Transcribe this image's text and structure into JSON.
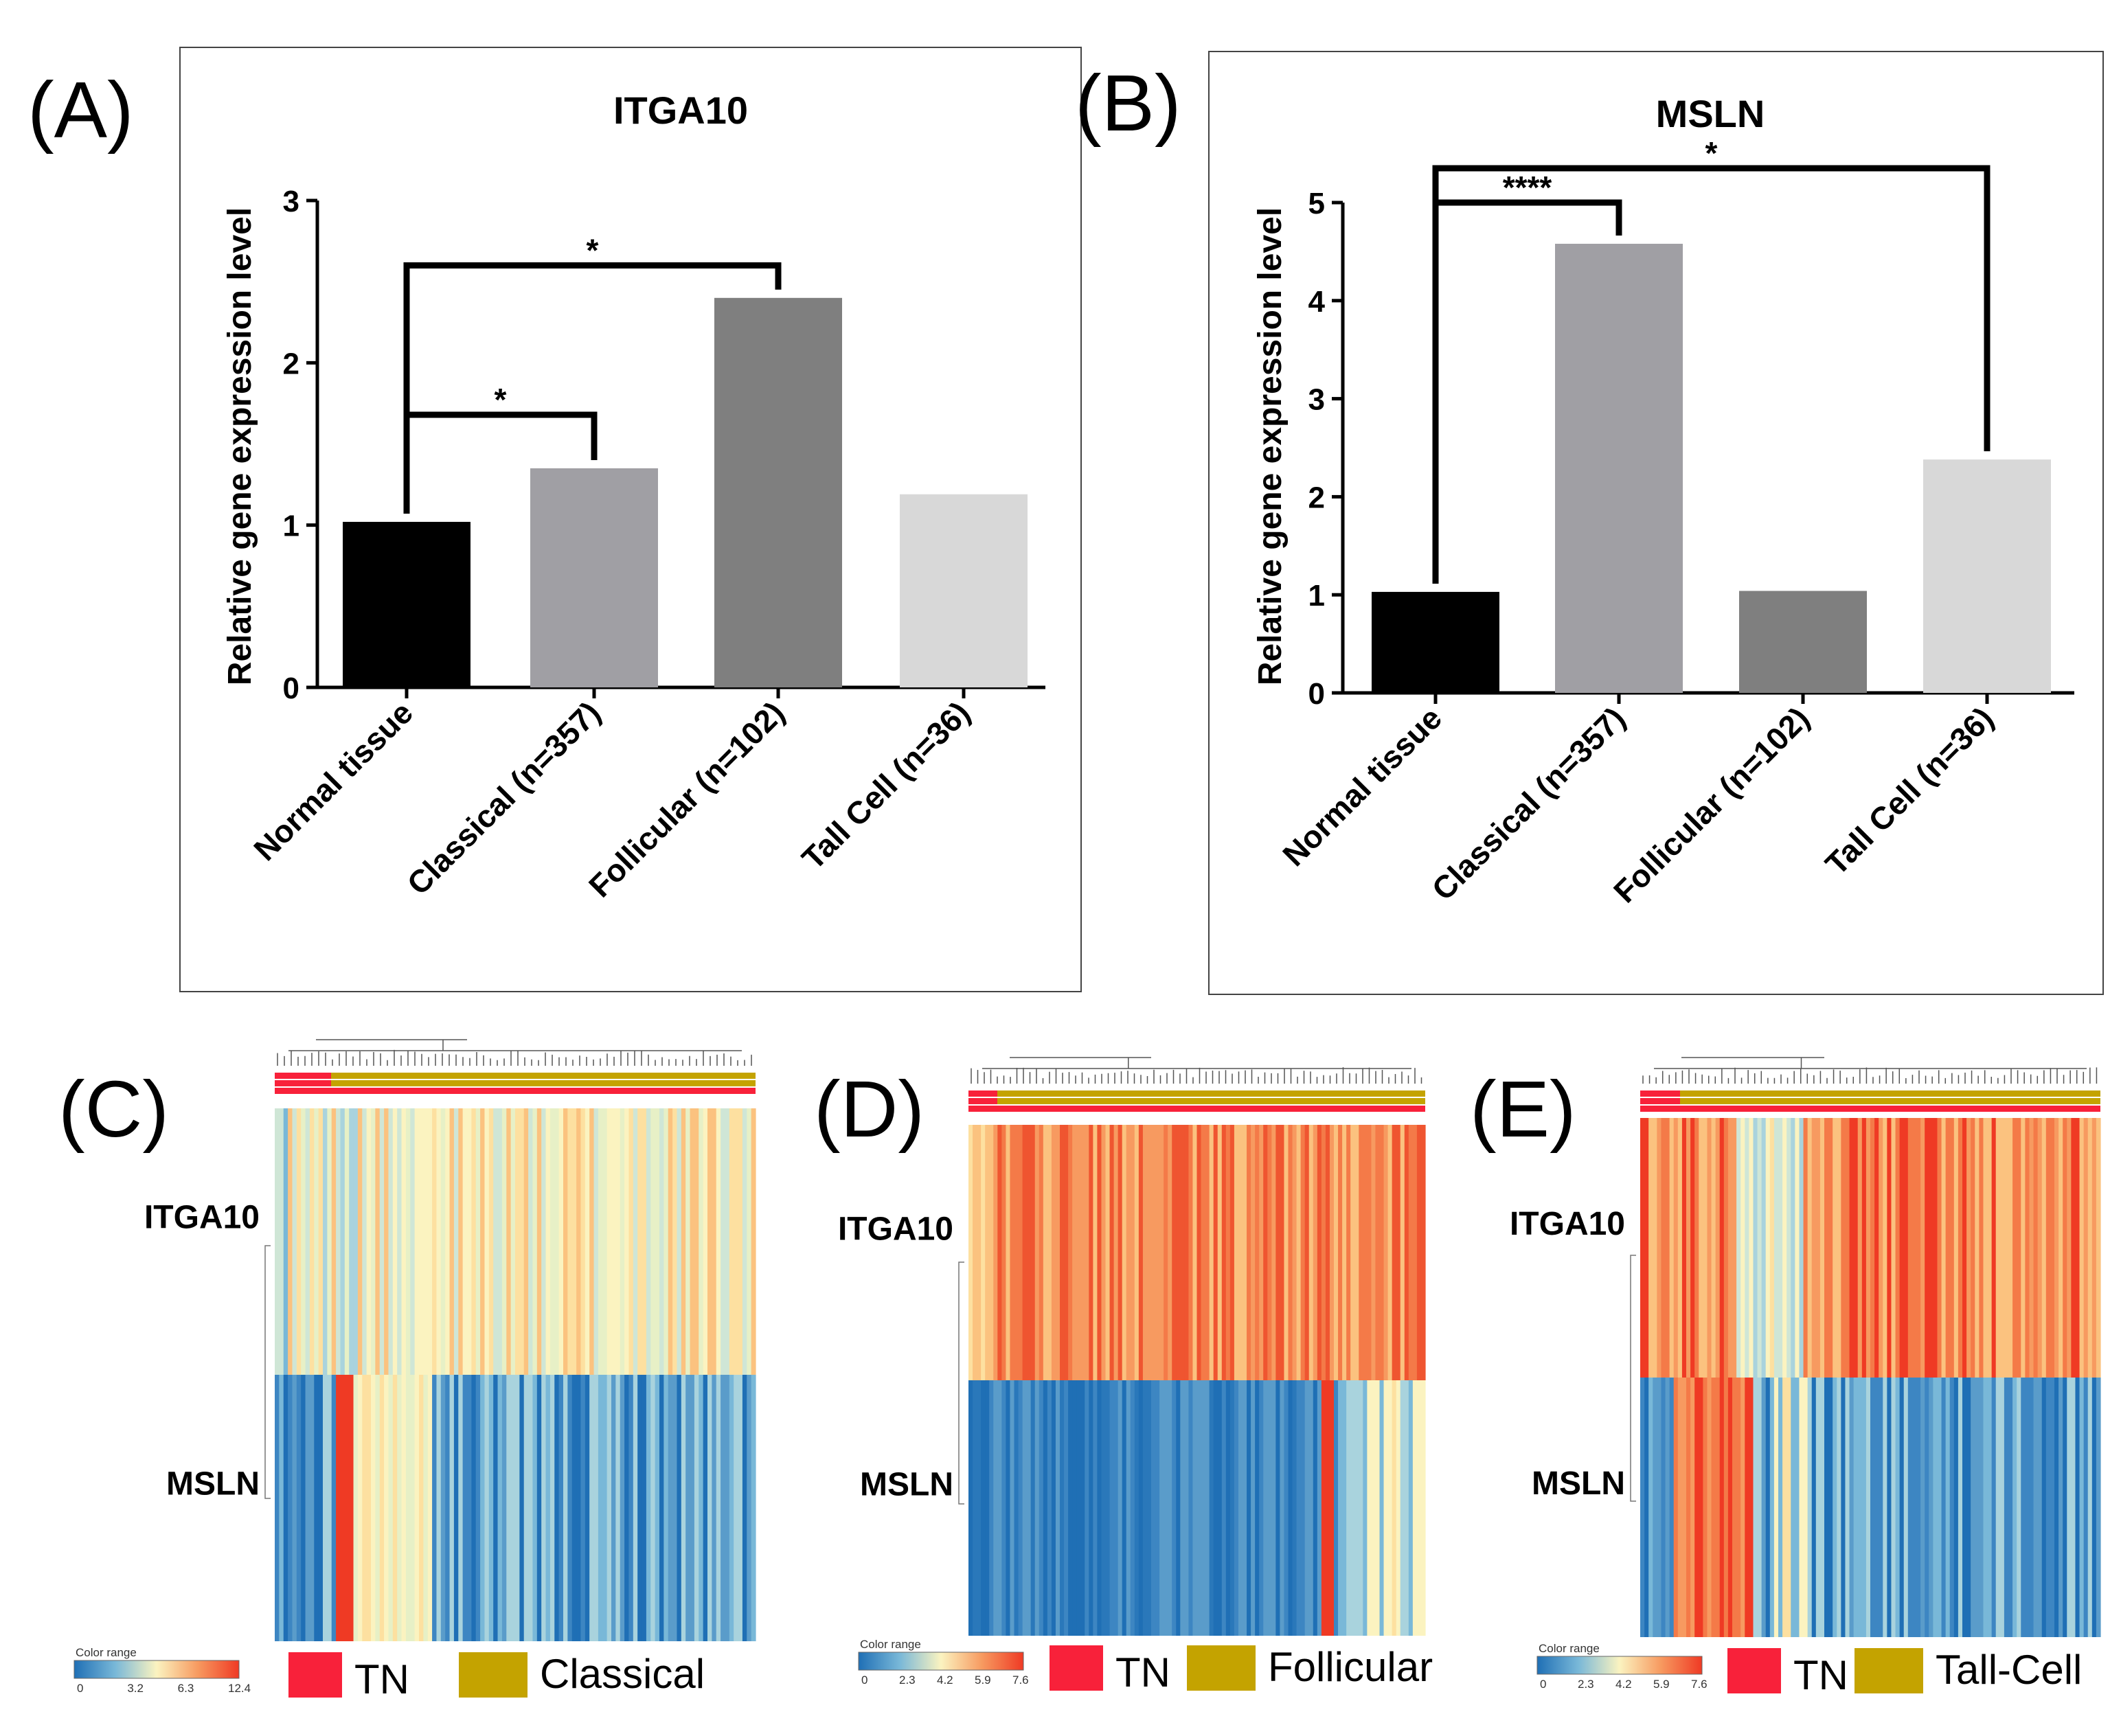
{
  "chart_data": [
    {
      "panel": "(A)",
      "type": "bar",
      "title": "ITGA10",
      "ylabel": "Relative gene expression level",
      "ylim": [
        0,
        3
      ],
      "yticks": [
        "0",
        "1",
        "2",
        "3"
      ],
      "categories": [
        "Normal tissue",
        "Classical (n=357)",
        "Follicular (n=102)",
        "Tall Cell (n=36)"
      ],
      "values": [
        1.02,
        1.35,
        2.4,
        1.19
      ],
      "colors": [
        "#000000",
        "#a09fa4",
        "#7f7f7f",
        "#d8d8d8"
      ],
      "significance": [
        {
          "from": 0,
          "to": 2,
          "label": "*",
          "level": 2.6
        },
        {
          "from": 0,
          "to": 1,
          "label": "*",
          "level": 1.68
        }
      ]
    },
    {
      "panel": "(B)",
      "type": "bar",
      "title": "MSLN",
      "ylabel": "Relative gene expression level",
      "ylim": [
        0,
        5
      ],
      "yticks": [
        "0",
        "1",
        "2",
        "3",
        "4",
        "5"
      ],
      "categories": [
        "Normal tissue",
        "Classical (n=357)",
        "Follicular (n=102)",
        "Tall Cell (n=36)"
      ],
      "values": [
        1.03,
        4.58,
        1.04,
        2.38
      ],
      "colors": [
        "#000000",
        "#a09fa4",
        "#7f7f7f",
        "#d8d8d8"
      ],
      "significance": [
        {
          "from": 0,
          "to": 3,
          "label": "*",
          "level": 5.35
        },
        {
          "from": 0,
          "to": 1,
          "label": "****",
          "level": 5.0
        }
      ]
    },
    {
      "panel": "(C)",
      "type": "heatmap",
      "rows": [
        "ITGA10",
        "MSLN"
      ],
      "legend": [
        {
          "label": "TN",
          "color": "#f8213a"
        },
        {
          "label": "Classical",
          "color": "#c4a300"
        }
      ],
      "color_range": {
        "title": "Color range",
        "ticks": [
          "0",
          "3.2",
          "6.3",
          "12.4"
        ]
      }
    },
    {
      "panel": "(D)",
      "type": "heatmap",
      "rows": [
        "ITGA10",
        "MSLN"
      ],
      "legend": [
        {
          "label": "TN",
          "color": "#f8213a"
        },
        {
          "label": "Follicular",
          "color": "#c4a300"
        }
      ],
      "color_range": {
        "title": "Color range",
        "ticks": [
          "0",
          "2.3",
          "4.2",
          "5.9",
          "7.6"
        ]
      }
    },
    {
      "panel": "(E)",
      "type": "heatmap",
      "rows": [
        "ITGA10",
        "MSLN"
      ],
      "legend": [
        {
          "label": "TN",
          "color": "#f8213a"
        },
        {
          "label": "Tall-Cell",
          "color": "#c4a300"
        }
      ],
      "color_range": {
        "title": "Color range",
        "ticks": [
          "0",
          "2.3",
          "4.2",
          "5.9",
          "7.6"
        ]
      }
    }
  ]
}
